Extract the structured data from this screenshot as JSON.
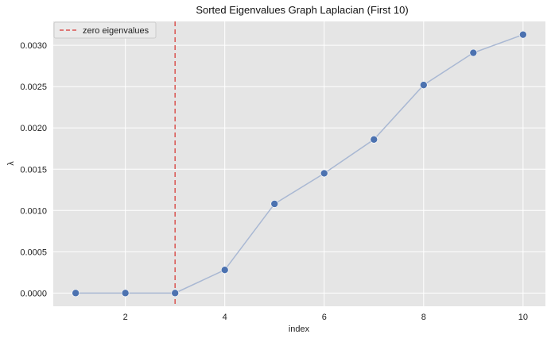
{
  "chart_data": {
    "type": "line",
    "title": "Sorted Eigenvalues Graph Laplacian (First 10)",
    "xlabel": "index",
    "ylabel": "λ",
    "x": [
      1,
      2,
      3,
      4,
      5,
      6,
      7,
      8,
      9,
      10
    ],
    "series": [
      {
        "values": [
          0.0,
          0.0,
          0.0,
          0.00028,
          0.00108,
          0.00145,
          0.00186,
          0.00252,
          0.00291,
          0.00313
        ]
      }
    ],
    "xlim": [
      0.55,
      10.45
    ],
    "ylim": [
      -0.00016,
      0.00329
    ],
    "xticks": [
      2,
      4,
      6,
      8,
      10
    ],
    "xtick_labels": [
      "2",
      "4",
      "6",
      "8",
      "10"
    ],
    "yticks": [
      0.0,
      0.0005,
      0.001,
      0.0015,
      0.002,
      0.0025,
      0.003
    ],
    "ytick_labels": [
      "0.0000",
      "0.0005",
      "0.0010",
      "0.0015",
      "0.0020",
      "0.0025",
      "0.0030"
    ],
    "vline": {
      "x": 3,
      "label": "zero eigenvalues"
    },
    "legend": {
      "placement": "top-left",
      "entries": [
        "zero eigenvalues"
      ]
    },
    "grid": true,
    "colors": {
      "background": "#e5e5e5",
      "grid": "#ffffff",
      "marker": "#4c72b0",
      "line": "#a9b8d3",
      "vline": "#d9534f"
    }
  }
}
